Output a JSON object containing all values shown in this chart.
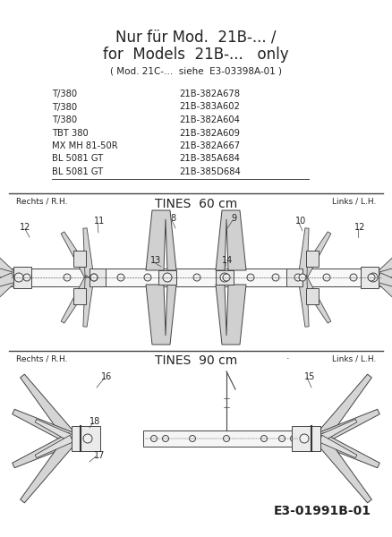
{
  "bg_color": "#ffffff",
  "title_line1": "Nur für Mod.  21B-... /",
  "title_line2": "for  Models  21B-...   only",
  "subtitle": "( Mod. 21C-...  siehe  E3-03398A-01 )",
  "models": [
    [
      "T/380",
      "21B-382A678"
    ],
    [
      "T/380",
      "21B-383A602"
    ],
    [
      "T/380",
      "21B-382A604"
    ],
    [
      "TBT 380",
      "21B-382A609"
    ],
    [
      "MX MH 81-50R",
      "21B-382A667"
    ],
    [
      "BL 5081 GT",
      "21B-385A684"
    ],
    [
      "BL 5081 GT",
      "21B-385D684"
    ]
  ],
  "section1_title": "TINES  60 cm",
  "section1_left_label": "Rechts / R.H.",
  "section1_right_label": "Links / L.H.",
  "section2_title": "TINES  90 cm",
  "section2_left_label": "Rechts / R.H.",
  "section2_right_label": "Links / L.H.",
  "footer": "E3-01991B-01",
  "line_color": "#444444",
  "text_color": "#222222"
}
